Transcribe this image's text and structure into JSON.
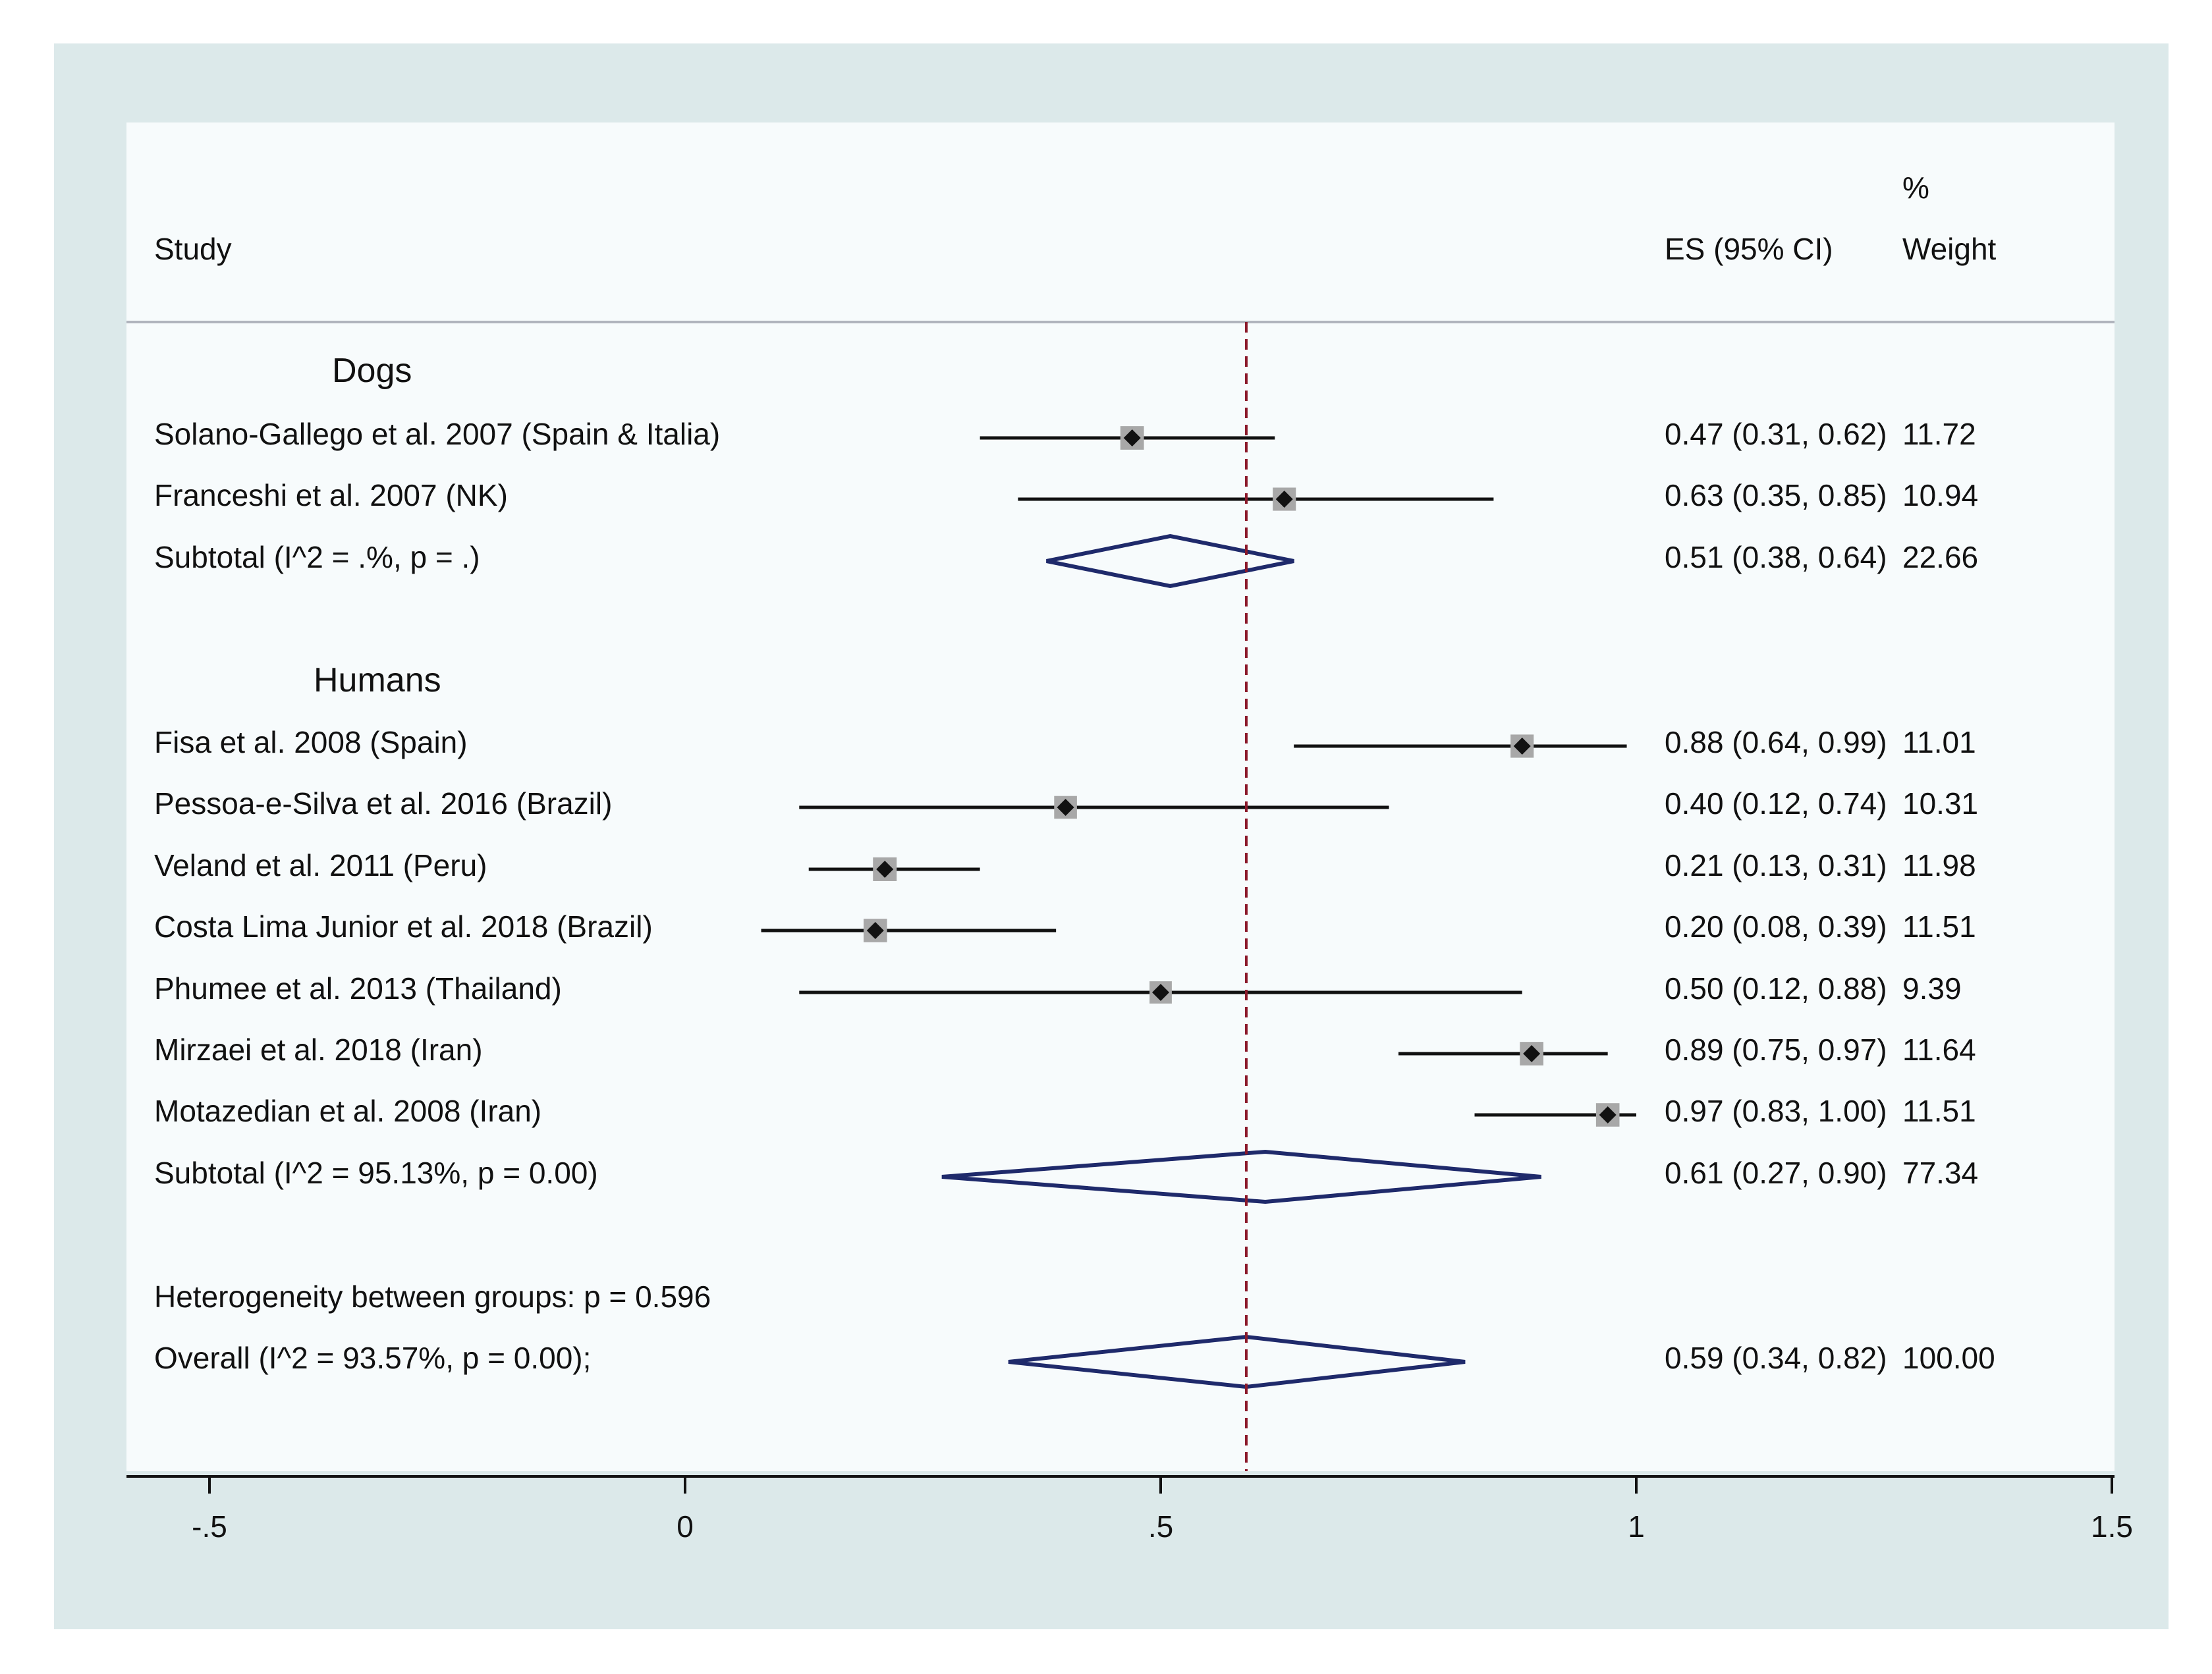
{
  "chart_data": {
    "type": "forest",
    "header": {
      "study": "Study",
      "es": "ES (95% CI)",
      "weight_top": "%",
      "weight_bottom": "Weight"
    },
    "xlim": [
      -0.6,
      1.5
    ],
    "xticks": [
      -0.5,
      0,
      0.5,
      1,
      1.5
    ],
    "xtick_labels": [
      "-.5",
      "0",
      ".5",
      "1",
      "1.5"
    ],
    "overall_reference": 0.59,
    "groups": [
      {
        "name": "Dogs",
        "studies": [
          {
            "label": "Solano-Gallego et al. 2007 (Spain & Italia)",
            "es": 0.47,
            "lo": 0.31,
            "hi": 0.62,
            "es_text": "0.47 (0.31, 0.62)",
            "weight": "11.72"
          },
          {
            "label": "Franceshi et al. 2007 (NK)",
            "es": 0.63,
            "lo": 0.35,
            "hi": 0.85,
            "es_text": "0.63 (0.35, 0.85)",
            "weight": "10.94"
          }
        ],
        "subtotal": {
          "label": "Subtotal  (I^2 = .%, p = .)",
          "es": 0.51,
          "lo": 0.38,
          "hi": 0.64,
          "es_text": "0.51 (0.38, 0.64)",
          "weight": "22.66"
        }
      },
      {
        "name": "Humans",
        "studies": [
          {
            "label": "Fisa et al. 2008 (Spain)",
            "es": 0.88,
            "lo": 0.64,
            "hi": 0.99,
            "es_text": "0.88 (0.64, 0.99)",
            "weight": "11.01"
          },
          {
            "label": "Pessoa-e-Silva et al. 2016 (Brazil)",
            "es": 0.4,
            "lo": 0.12,
            "hi": 0.74,
            "es_text": "0.40 (0.12, 0.74)",
            "weight": "10.31"
          },
          {
            "label": "Veland et al. 2011 (Peru)",
            "es": 0.21,
            "lo": 0.13,
            "hi": 0.31,
            "es_text": "0.21 (0.13, 0.31)",
            "weight": "11.98"
          },
          {
            "label": "Costa Lima Junior et al. 2018 (Brazil)",
            "es": 0.2,
            "lo": 0.08,
            "hi": 0.39,
            "es_text": "0.20 (0.08, 0.39)",
            "weight": "11.51"
          },
          {
            "label": "Phumee et al. 2013 (Thailand)",
            "es": 0.5,
            "lo": 0.12,
            "hi": 0.88,
            "es_text": "0.50 (0.12, 0.88)",
            "weight": "9.39"
          },
          {
            "label": "Mirzaei et al. 2018 (Iran)",
            "es": 0.89,
            "lo": 0.75,
            "hi": 0.97,
            "es_text": "0.89 (0.75, 0.97)",
            "weight": "11.64"
          },
          {
            "label": "Motazedian et al. 2008 (Iran)",
            "es": 0.97,
            "lo": 0.83,
            "hi": 1.0,
            "es_text": "0.97 (0.83, 1.00)",
            "weight": "11.51"
          }
        ],
        "subtotal": {
          "label": "Subtotal  (I^2 = 95.13%, p = 0.00)",
          "es": 0.61,
          "lo": 0.27,
          "hi": 0.9,
          "es_text": "0.61 (0.27, 0.90)",
          "weight": "77.34"
        }
      }
    ],
    "heterogeneity": "Heterogeneity between groups: p = 0.596",
    "overall": {
      "label": "Overall  (I^2 = 93.57%, p = 0.00);",
      "es": 0.59,
      "lo": 0.34,
      "hi": 0.82,
      "es_text": "0.59 (0.34, 0.82)",
      "weight": "100.00"
    },
    "colors": {
      "outer_bg": "#dce9ea",
      "plot_bg": "#f7fbfc",
      "diamond": "#1f2a6b",
      "ref_line": "#8b1a2b",
      "box": "#a8a8a8",
      "text": "#111111"
    }
  }
}
